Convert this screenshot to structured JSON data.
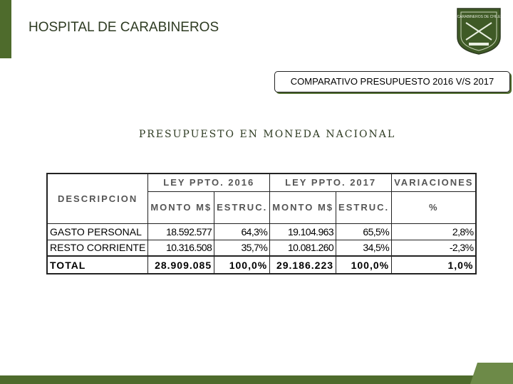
{
  "header": {
    "title": "HOSPITAL DE CARABINEROS",
    "logo_text": "CARABINEROS DE CHILE"
  },
  "banner": "COMPARATIVO PRESUPUESTO 2016 V/S 2017",
  "subtitle": "PRESUPUESTO EN MONEDA NACIONAL",
  "table": {
    "description_header": "DESCRIPCION",
    "groups": [
      "LEY PPTO. 2016",
      "LEY PPTO. 2017",
      "VARIACIONES"
    ],
    "columns": [
      "MONTO M$",
      "ESTRUC.",
      "MONTO M$",
      "ESTRUC.",
      "%"
    ],
    "rows": [
      [
        "GASTO PERSONAL",
        "18.592.577",
        "64,3%",
        "19.104.963",
        "65,5%",
        "2,8%"
      ],
      [
        "RESTO CORRIENTE",
        "10.316.508",
        "35,7%",
        "10.081.260",
        "34,5%",
        "-2,3%"
      ],
      [
        "TOTAL",
        "28.909.085",
        "100,0%",
        "29.186.223",
        "100,0%",
        "1,0%"
      ]
    ]
  }
}
